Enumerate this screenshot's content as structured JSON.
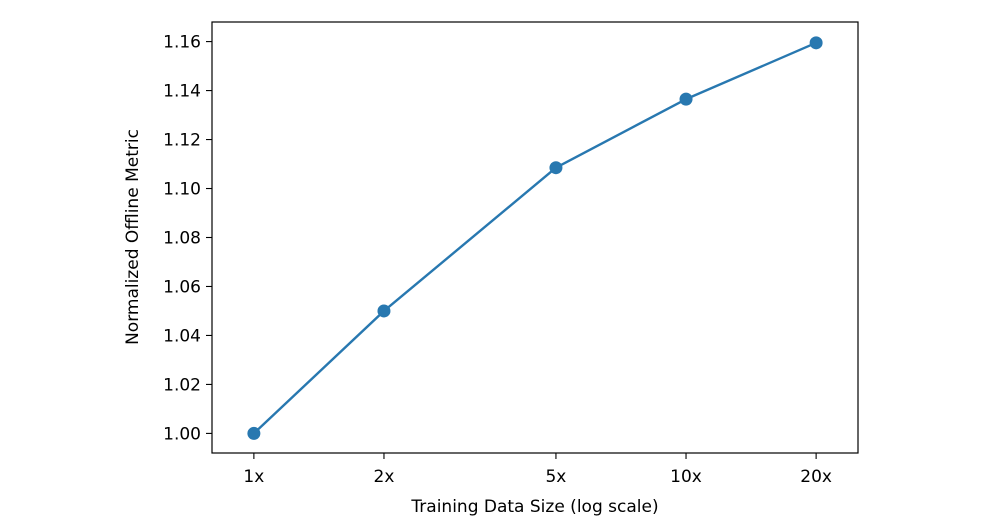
{
  "chart_data": {
    "type": "line",
    "title": "",
    "xlabel": "Training Data Size (log scale)",
    "ylabel": "Normalized Offline Metric",
    "x_scale": "log",
    "x": [
      1,
      2,
      5,
      10,
      20
    ],
    "x_tick_labels": [
      "1x",
      "2x",
      "5x",
      "10x",
      "20x"
    ],
    "y_ticks": [
      1.0,
      1.02,
      1.04,
      1.06,
      1.08,
      1.1,
      1.12,
      1.14,
      1.16
    ],
    "y_tick_labels": [
      "1.00",
      "1.02",
      "1.04",
      "1.06",
      "1.08",
      "1.10",
      "1.12",
      "1.14",
      "1.16"
    ],
    "xlim": [
      0.8,
      25
    ],
    "ylim": [
      0.992,
      1.168
    ],
    "grid": false,
    "series": [
      {
        "values": [
          1.0,
          1.05,
          1.1085,
          1.1365,
          1.1595
        ],
        "color": "#2878b0",
        "marker": "circle"
      }
    ]
  }
}
